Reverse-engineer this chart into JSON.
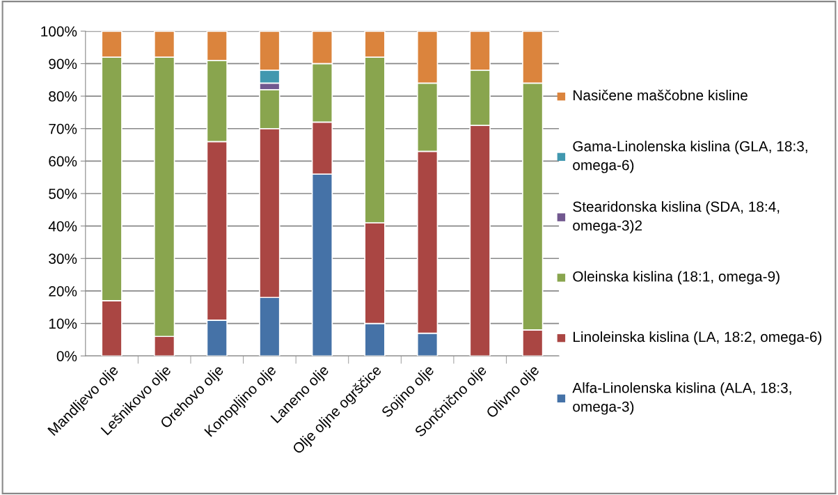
{
  "chart_data": {
    "type": "bar",
    "stacked": true,
    "categories": [
      "Mandljevo olje",
      "Lešnikovo olje",
      "Orehovo olje",
      "Konopljino olje",
      "Laneno olje",
      "Olje oljne ogrščice",
      "Sojino olje",
      "Sončnično olje",
      "Olivno olje"
    ],
    "series": [
      {
        "name": "Alfa-Linolenska kislina (ALA, 18:3, omega-3)",
        "color": "#4572a7",
        "values": [
          null,
          null,
          11,
          18,
          56,
          10,
          7,
          null,
          null
        ]
      },
      {
        "name": "Linoleinska kislina (LA, 18:2, omega-6)",
        "color": "#aa4643",
        "values": [
          17,
          6,
          55,
          52,
          16,
          31,
          56,
          71,
          8
        ]
      },
      {
        "name": "Oleinska kislina (18:1, omega-9)",
        "color": "#89a54e",
        "values": [
          75,
          86,
          25,
          12,
          18,
          51,
          21,
          17,
          76
        ]
      },
      {
        "name": "Stearidonska kislina (SDA, 18:4, omega-3)2",
        "color": "#71588f",
        "values": [
          null,
          null,
          null,
          2,
          null,
          null,
          null,
          null,
          null
        ]
      },
      {
        "name": "Gama-Linolenska kislina (GLA, 18:3, omega-6)",
        "color": "#4198af",
        "values": [
          null,
          null,
          null,
          4,
          null,
          null,
          null,
          null,
          null
        ]
      },
      {
        "name": "Nasičene maščobne kisline",
        "color": "#db843d",
        "values": [
          8,
          8,
          9,
          12,
          10,
          8,
          16,
          12,
          16
        ]
      }
    ],
    "ylim": [
      0,
      100
    ],
    "yticks": [
      {
        "value": 0,
        "label": "0%"
      },
      {
        "value": 10,
        "label": "10%"
      },
      {
        "value": 20,
        "label": "20%"
      },
      {
        "value": 30,
        "label": "30%"
      },
      {
        "value": 40,
        "label": "40%"
      },
      {
        "value": 50,
        "label": "50%"
      },
      {
        "value": 60,
        "label": "60%"
      },
      {
        "value": 70,
        "label": "70%"
      },
      {
        "value": 80,
        "label": "80%"
      },
      {
        "value": 90,
        "label": "90%"
      },
      {
        "value": 100,
        "label": "100%"
      }
    ],
    "grid": "y",
    "legend": "right"
  }
}
